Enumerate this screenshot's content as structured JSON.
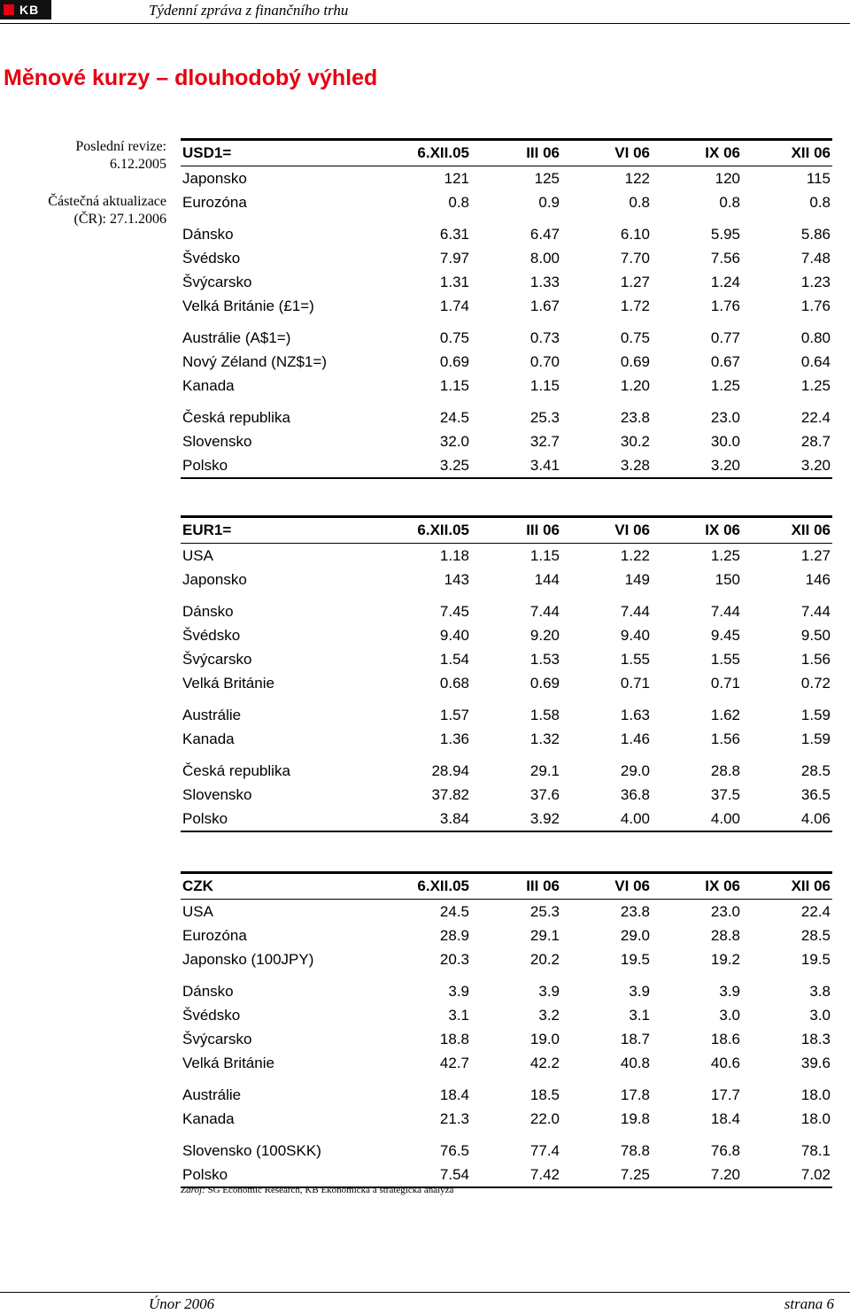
{
  "header": {
    "logo_text": "KB",
    "title": "Týdenní zpráva z finančního trhu"
  },
  "page_title": "Měnové kurzy – dlouhodobý výhled",
  "revision": {
    "line1": "Poslední revize:",
    "line2": "6.12.2005",
    "line3": "Částečná aktualizace",
    "line4": "(ČR): 27.1.2006"
  },
  "tables": [
    {
      "header": [
        "USD1=",
        "6.XII.05",
        "III 06",
        "VI 06",
        "IX 06",
        "XII 06"
      ],
      "rows": [
        [
          "Japonsko",
          "121",
          "125",
          "122",
          "120",
          "115"
        ],
        [
          "Eurozóna",
          "0.8",
          "0.9",
          "0.8",
          "0.8",
          "0.8"
        ],
        [
          "Dánsko",
          "6.31",
          "6.47",
          "6.10",
          "5.95",
          "5.86"
        ],
        [
          "Švédsko",
          "7.97",
          "8.00",
          "7.70",
          "7.56",
          "7.48"
        ],
        [
          "Švýcarsko",
          "1.31",
          "1.33",
          "1.27",
          "1.24",
          "1.23"
        ],
        [
          "Velká Británie (£1=)",
          "1.74",
          "1.67",
          "1.72",
          "1.76",
          "1.76"
        ],
        [
          "Austrálie (A$1=)",
          "0.75",
          "0.73",
          "0.75",
          "0.77",
          "0.80"
        ],
        [
          "Nový Zéland (NZ$1=)",
          "0.69",
          "0.70",
          "0.69",
          "0.67",
          "0.64"
        ],
        [
          "Kanada",
          "1.15",
          "1.15",
          "1.20",
          "1.25",
          "1.25"
        ],
        [
          "Česká republika",
          "24.5",
          "25.3",
          "23.8",
          "23.0",
          "22.4"
        ],
        [
          "Slovensko",
          "32.0",
          "32.7",
          "30.2",
          "30.0",
          "28.7"
        ],
        [
          "Polsko",
          "3.25",
          "3.41",
          "3.28",
          "3.20",
          "3.20"
        ]
      ]
    },
    {
      "header": [
        "EUR1=",
        "6.XII.05",
        "III 06",
        "VI 06",
        "IX 06",
        "XII 06"
      ],
      "rows": [
        [
          "USA",
          "1.18",
          "1.15",
          "1.22",
          "1.25",
          "1.27"
        ],
        [
          "Japonsko",
          "143",
          "144",
          "149",
          "150",
          "146"
        ],
        [
          "Dánsko",
          "7.45",
          "7.44",
          "7.44",
          "7.44",
          "7.44"
        ],
        [
          "Švédsko",
          "9.40",
          "9.20",
          "9.40",
          "9.45",
          "9.50"
        ],
        [
          "Švýcarsko",
          "1.54",
          "1.53",
          "1.55",
          "1.55",
          "1.56"
        ],
        [
          "Velká Británie",
          "0.68",
          "0.69",
          "0.71",
          "0.71",
          "0.72"
        ],
        [
          "Austrálie",
          "1.57",
          "1.58",
          "1.63",
          "1.62",
          "1.59"
        ],
        [
          "Kanada",
          "1.36",
          "1.32",
          "1.46",
          "1.56",
          "1.59"
        ],
        [
          "Česká republika",
          "28.94",
          "29.1",
          "29.0",
          "28.8",
          "28.5"
        ],
        [
          "Slovensko",
          "37.82",
          "37.6",
          "36.8",
          "37.5",
          "36.5"
        ],
        [
          "Polsko",
          "3.84",
          "3.92",
          "4.00",
          "4.00",
          "4.06"
        ]
      ]
    },
    {
      "header": [
        "CZK",
        "6.XII.05",
        "III 06",
        "VI 06",
        "IX 06",
        "XII 06"
      ],
      "rows": [
        [
          "USA",
          "24.5",
          "25.3",
          "23.8",
          "23.0",
          "22.4"
        ],
        [
          "Eurozóna",
          "28.9",
          "29.1",
          "29.0",
          "28.8",
          "28.5"
        ],
        [
          "Japonsko (100JPY)",
          "20.3",
          "20.2",
          "19.5",
          "19.2",
          "19.5"
        ],
        [
          "Dánsko",
          "3.9",
          "3.9",
          "3.9",
          "3.9",
          "3.8"
        ],
        [
          "Švédsko",
          "3.1",
          "3.2",
          "3.1",
          "3.0",
          "3.0"
        ],
        [
          "Švýcarsko",
          "18.8",
          "19.0",
          "18.7",
          "18.6",
          "18.3"
        ],
        [
          "Velká Británie",
          "42.7",
          "42.2",
          "40.8",
          "40.6",
          "39.6"
        ],
        [
          "Austrálie",
          "18.4",
          "18.5",
          "17.8",
          "17.7",
          "18.0"
        ],
        [
          "Kanada",
          "21.3",
          "22.0",
          "19.8",
          "18.4",
          "18.0"
        ],
        [
          "Slovensko (100SKK)",
          "76.5",
          "77.4",
          "78.8",
          "76.8",
          "78.1"
        ],
        [
          "Polsko",
          "7.54",
          "7.42",
          "7.25",
          "7.20",
          "7.02"
        ]
      ]
    }
  ],
  "source": {
    "label": "Zdroj:",
    "text": " SG Economic Research, KB Ekonomická a strategická analýza"
  },
  "footer": {
    "left": "Únor 2006",
    "right": "strana 6"
  }
}
